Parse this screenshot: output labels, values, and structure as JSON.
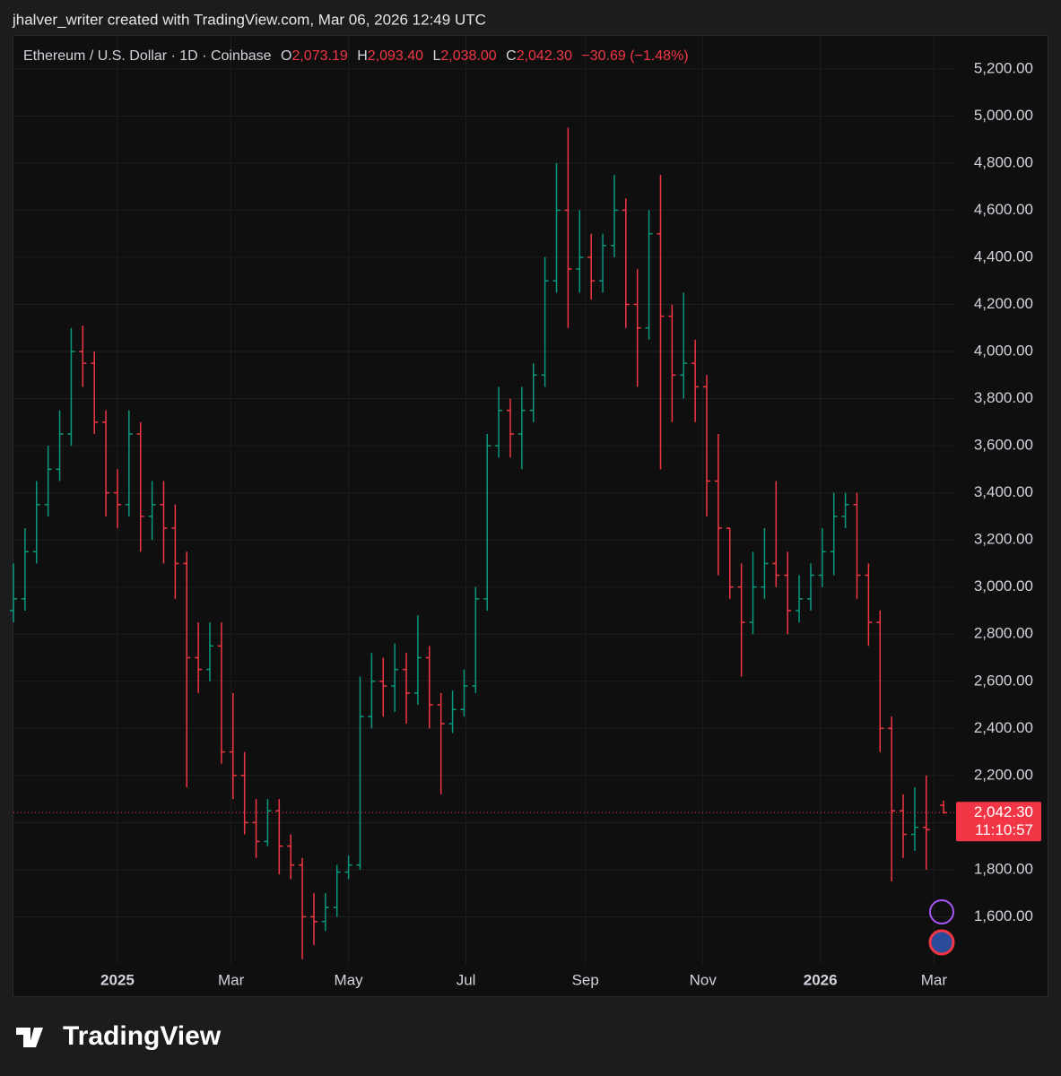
{
  "header": {
    "attribution": "jhalver_writer created with TradingView.com, Mar 06, 2026 12:49 UTC",
    "logo": "TradingView"
  },
  "chart_data": {
    "type": "ohlc",
    "title": "Ethereum / U.S. Dollar · 1D · Coinbase",
    "legend": {
      "open_label": "O",
      "open": "2,073.19",
      "high_label": "H",
      "high": "2,093.40",
      "low_label": "L",
      "low": "2,038.00",
      "close_label": "C",
      "close": "2,042.30",
      "change": "−30.69 (−1.48%)"
    },
    "x": [
      -54,
      -48,
      -42,
      -36,
      -30,
      -24,
      -18,
      -12,
      -6,
      0,
      6,
      12,
      18,
      24,
      30,
      36,
      42,
      48,
      54,
      60,
      66,
      72,
      78,
      84,
      90,
      96,
      102,
      108,
      114,
      120,
      126,
      132,
      138,
      144,
      150,
      156,
      162,
      168,
      174,
      180,
      186,
      192,
      198,
      204,
      210,
      216,
      222,
      228,
      234,
      240,
      246,
      252,
      258,
      264,
      270,
      276,
      282,
      288,
      294,
      300,
      306,
      312,
      318,
      324,
      330,
      336,
      342,
      348,
      354,
      360,
      366,
      372,
      378,
      384,
      390,
      396,
      402,
      408,
      414,
      420,
      429
    ],
    "open": [
      2900,
      2950,
      3150,
      3350,
      3500,
      3650,
      4000,
      3950,
      3700,
      3400,
      3350,
      3650,
      3300,
      3350,
      3250,
      3100,
      2700,
      2650,
      2750,
      2300,
      2200,
      2000,
      1920,
      2050,
      1900,
      1820,
      1600,
      1580,
      1640,
      1790,
      1820,
      2450,
      2600,
      2580,
      2650,
      2550,
      2700,
      2500,
      2420,
      2480,
      2580,
      2950,
      3600,
      3750,
      3650,
      3750,
      3900,
      4300,
      4600,
      4350,
      4400,
      4300,
      4450,
      4600,
      4200,
      4100,
      4500,
      4150,
      3900,
      3950,
      3850,
      3450,
      3250,
      3000,
      2850,
      3000,
      3100,
      3050,
      2900,
      2950,
      3050,
      3150,
      3300,
      3350,
      3050,
      2850,
      2400,
      2050,
      1950,
      1980,
      2073.19
    ],
    "high": [
      3100,
      3250,
      3450,
      3600,
      3750,
      4100,
      4110,
      4000,
      3750,
      3500,
      3750,
      3700,
      3450,
      3450,
      3350,
      3150,
      2850,
      2850,
      2850,
      2550,
      2300,
      2100,
      2100,
      2100,
      1950,
      1850,
      1700,
      1700,
      1820,
      1860,
      2620,
      2720,
      2700,
      2760,
      2720,
      2880,
      2750,
      2550,
      2560,
      2650,
      3000,
      3650,
      3850,
      3800,
      3850,
      3950,
      4400,
      4800,
      4950,
      4600,
      4500,
      4500,
      4750,
      4650,
      4350,
      4600,
      4750,
      4200,
      4250,
      4050,
      3900,
      3650,
      3250,
      3100,
      3150,
      3250,
      3450,
      3150,
      3050,
      3100,
      3250,
      3400,
      3400,
      3400,
      3100,
      2900,
      2450,
      2120,
      2150,
      2200,
      2093.4
    ],
    "low": [
      2850,
      2900,
      3100,
      3300,
      3450,
      3600,
      3850,
      3650,
      3300,
      3250,
      3300,
      3150,
      3200,
      3100,
      2950,
      2150,
      2550,
      2600,
      2250,
      2100,
      1950,
      1850,
      1900,
      1780,
      1760,
      1420,
      1480,
      1540,
      1600,
      1760,
      1800,
      2400,
      2450,
      2470,
      2420,
      2500,
      2400,
      2120,
      2380,
      2450,
      2550,
      2900,
      3550,
      3550,
      3500,
      3700,
      3850,
      4250,
      4100,
      4250,
      4220,
      4250,
      4400,
      4100,
      3850,
      4050,
      3500,
      3700,
      3800,
      3700,
      3300,
      3050,
      2950,
      2620,
      2800,
      2950,
      3000,
      2800,
      2850,
      2900,
      3000,
      3050,
      3250,
      2950,
      2750,
      2300,
      1750,
      1850,
      1880,
      1800,
      2038
    ],
    "close": [
      2950,
      3150,
      3350,
      3500,
      3650,
      4000,
      3950,
      3700,
      3400,
      3350,
      3650,
      3300,
      3350,
      3250,
      3100,
      2700,
      2650,
      2750,
      2300,
      2200,
      2000,
      1920,
      2050,
      1900,
      1820,
      1600,
      1580,
      1640,
      1790,
      1820,
      2450,
      2600,
      2580,
      2650,
      2550,
      2700,
      2500,
      2420,
      2480,
      2580,
      2950,
      3600,
      3750,
      3650,
      3750,
      3900,
      4300,
      4600,
      4350,
      4400,
      4300,
      4450,
      4600,
      4200,
      4100,
      4500,
      4150,
      3900,
      3950,
      3850,
      3450,
      3250,
      3000,
      2850,
      3000,
      3100,
      3050,
      2900,
      2950,
      3050,
      3150,
      3300,
      3350,
      3050,
      2850,
      2400,
      2050,
      1950,
      1980,
      1970,
      2042.3
    ],
    "up_color": "#089981",
    "down_color": "#f23645",
    "xlim": [
      -54,
      435
    ],
    "xticks": [
      {
        "value": 0,
        "label": "2025"
      },
      {
        "value": 59,
        "label": "Mar"
      },
      {
        "value": 120,
        "label": "May"
      },
      {
        "value": 181,
        "label": "Jul"
      },
      {
        "value": 243,
        "label": "Sep"
      },
      {
        "value": 304,
        "label": "Nov"
      },
      {
        "value": 365,
        "label": "2026"
      },
      {
        "value": 424,
        "label": "Mar"
      }
    ],
    "ylim": [
      1400,
      5340
    ],
    "yticks": [
      {
        "value": 1600,
        "label": "1,600.00"
      },
      {
        "value": 1800,
        "label": "1,800.00"
      },
      {
        "value": 2000,
        "label": "2,000.00"
      },
      {
        "value": 2200,
        "label": "2,200.00"
      },
      {
        "value": 2400,
        "label": "2,400.00"
      },
      {
        "value": 2600,
        "label": "2,600.00"
      },
      {
        "value": 2800,
        "label": "2,800.00"
      },
      {
        "value": 3000,
        "label": "3,000.00"
      },
      {
        "value": 3200,
        "label": "3,200.00"
      },
      {
        "value": 3400,
        "label": "3,400.00"
      },
      {
        "value": 3600,
        "label": "3,600.00"
      },
      {
        "value": 3800,
        "label": "3,800.00"
      },
      {
        "value": 4000,
        "label": "4,000.00"
      },
      {
        "value": 4200,
        "label": "4,200.00"
      },
      {
        "value": 4400,
        "label": "4,400.00"
      },
      {
        "value": 4600,
        "label": "4,600.00"
      },
      {
        "value": 4800,
        "label": "4,800.00"
      },
      {
        "value": 5000,
        "label": "5,000.00"
      },
      {
        "value": 5200,
        "label": "5,200.00"
      }
    ],
    "grid": true,
    "last_price": {
      "value": 2042.3,
      "label": "2,042.30"
    },
    "countdown": "11:10:57"
  }
}
